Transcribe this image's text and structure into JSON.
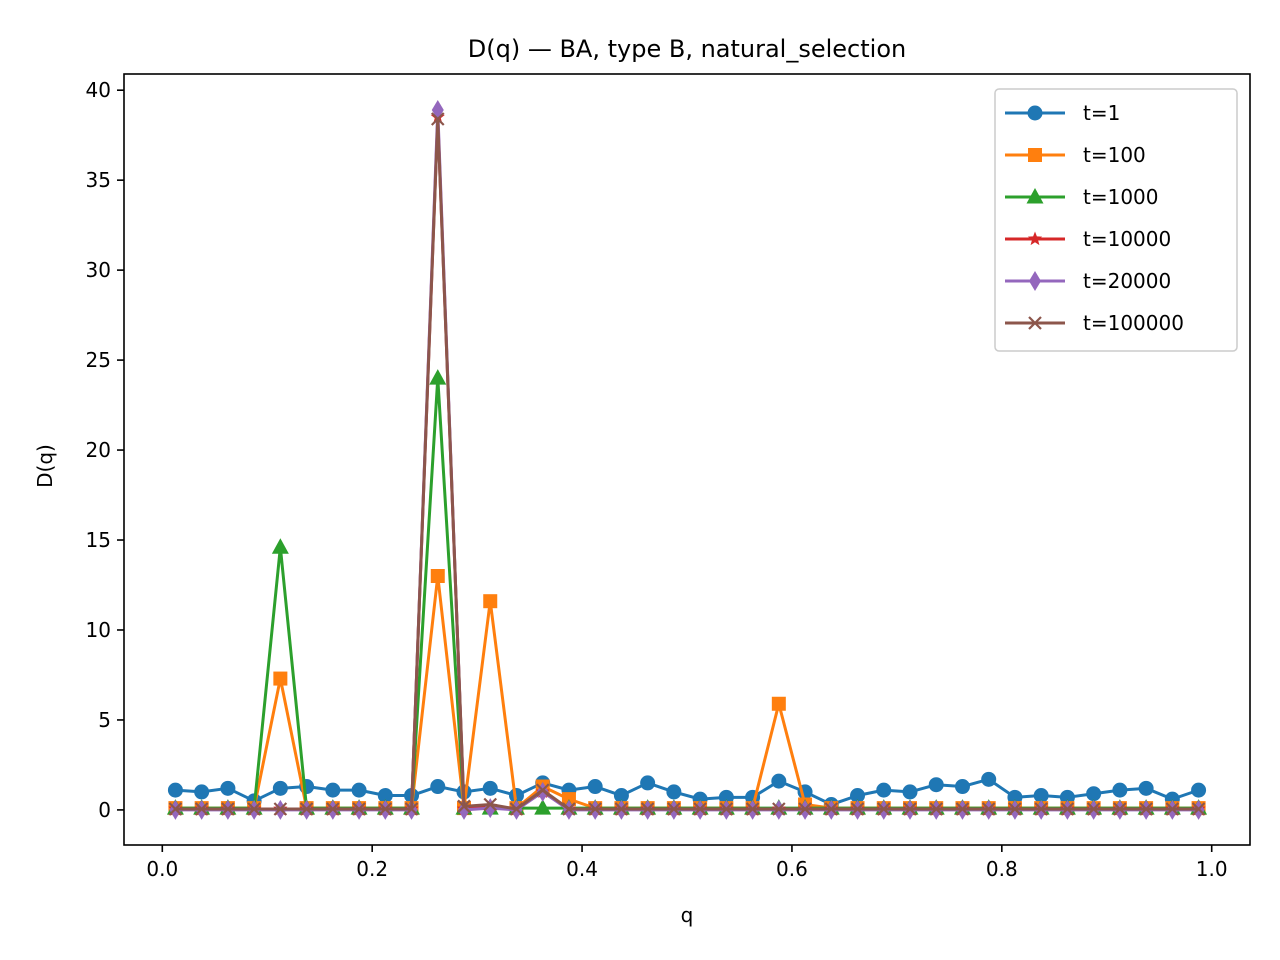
{
  "chart_data": {
    "type": "line",
    "title": "D(q) — BA, type B, natural_selection",
    "xlabel": "q",
    "ylabel": "D(q)",
    "xlim": [
      -0.0365,
      1.0365
    ],
    "ylim": [
      -1.95,
      40.9
    ],
    "xticks": [
      0.0,
      0.2,
      0.4,
      0.6,
      0.8,
      1.0
    ],
    "xtick_labels": [
      "0.0",
      "0.2",
      "0.4",
      "0.6",
      "0.8",
      "1.0"
    ],
    "yticks": [
      0,
      5,
      10,
      15,
      20,
      25,
      30,
      35,
      40
    ],
    "ytick_labels": [
      "0",
      "5",
      "10",
      "15",
      "20",
      "25",
      "30",
      "35",
      "40"
    ],
    "grid": false,
    "legend_position": "top-right",
    "x": [
      0.0125,
      0.0375,
      0.0625,
      0.0875,
      0.1125,
      0.1375,
      0.1625,
      0.1875,
      0.2125,
      0.2375,
      0.2625,
      0.2875,
      0.3125,
      0.3375,
      0.3625,
      0.3875,
      0.4125,
      0.4375,
      0.4625,
      0.4875,
      0.5125,
      0.5375,
      0.5625,
      0.5875,
      0.6125,
      0.6375,
      0.6625,
      0.6875,
      0.7125,
      0.7375,
      0.7625,
      0.7875,
      0.8125,
      0.8375,
      0.8625,
      0.8875,
      0.9125,
      0.9375,
      0.9625,
      0.9875
    ],
    "series": [
      {
        "name": "t=1",
        "color": "#1f77b4",
        "marker": "circle",
        "values": [
          1.1,
          1.0,
          1.2,
          0.5,
          1.2,
          1.3,
          1.1,
          1.1,
          0.8,
          0.8,
          1.3,
          1.0,
          1.2,
          0.8,
          1.5,
          1.1,
          1.3,
          0.8,
          1.5,
          1.0,
          0.6,
          0.7,
          0.7,
          1.6,
          1.0,
          0.3,
          0.8,
          1.1,
          1.0,
          1.4,
          1.3,
          1.7,
          0.7,
          0.8,
          0.7,
          0.9,
          1.1,
          1.2,
          0.6,
          1.1
        ]
      },
      {
        "name": "t=100",
        "color": "#ff7f0e",
        "marker": "square",
        "values": [
          0.1,
          0.1,
          0.1,
          0.1,
          7.3,
          0.1,
          0.1,
          0.1,
          0.1,
          0.1,
          13.0,
          0.1,
          11.6,
          0.1,
          1.3,
          0.6,
          0.1,
          0.1,
          0.1,
          0.1,
          0.1,
          0.1,
          0.1,
          5.9,
          0.3,
          0.1,
          0.1,
          0.1,
          0.1,
          0.1,
          0.1,
          0.1,
          0.1,
          0.1,
          0.1,
          0.1,
          0.1,
          0.1,
          0.1,
          0.1
        ]
      },
      {
        "name": "t=1000",
        "color": "#2ca02c",
        "marker": "triangle",
        "values": [
          0.1,
          0.1,
          0.1,
          0.1,
          14.6,
          0.1,
          0.1,
          0.1,
          0.1,
          0.1,
          24.0,
          0.1,
          0.1,
          0.1,
          0.1,
          0.1,
          0.1,
          0.1,
          0.1,
          0.1,
          0.1,
          0.1,
          0.1,
          0.1,
          0.1,
          0.1,
          0.1,
          0.1,
          0.1,
          0.1,
          0.1,
          0.1,
          0.1,
          0.1,
          0.1,
          0.1,
          0.1,
          0.1,
          0.1,
          0.1
        ]
      },
      {
        "name": "t=10000",
        "color": "#d62728",
        "marker": "star",
        "values": [
          0.05,
          0.05,
          0.05,
          0.05,
          0.05,
          0.05,
          0.05,
          0.05,
          0.05,
          0.05,
          38.5,
          0.05,
          0.2,
          0.05,
          1.0,
          0.05,
          0.05,
          0.05,
          0.05,
          0.05,
          0.05,
          0.05,
          0.05,
          0.05,
          0.05,
          0.05,
          0.05,
          0.05,
          0.05,
          0.05,
          0.05,
          0.05,
          0.05,
          0.05,
          0.05,
          0.05,
          0.05,
          0.05,
          0.05,
          0.05
        ]
      },
      {
        "name": "t=20000",
        "color": "#9467bd",
        "marker": "diamond",
        "values": [
          0.0,
          0.0,
          0.0,
          0.0,
          0.0,
          0.0,
          0.0,
          0.0,
          0.0,
          0.0,
          38.9,
          0.0,
          0.1,
          0.0,
          1.0,
          0.0,
          0.0,
          0.0,
          0.0,
          0.0,
          0.0,
          0.0,
          0.0,
          0.0,
          0.0,
          0.0,
          0.0,
          0.0,
          0.0,
          0.0,
          0.0,
          0.0,
          0.0,
          0.0,
          0.0,
          0.0,
          0.0,
          0.0,
          0.0,
          0.0
        ]
      },
      {
        "name": "t=100000",
        "color": "#8c564b",
        "marker": "x",
        "values": [
          0.05,
          0.05,
          0.05,
          0.05,
          0.05,
          0.05,
          0.05,
          0.05,
          0.05,
          0.05,
          38.4,
          0.2,
          0.3,
          0.05,
          1.1,
          0.05,
          0.05,
          0.05,
          0.05,
          0.05,
          0.05,
          0.05,
          0.05,
          0.05,
          0.05,
          0.05,
          0.05,
          0.05,
          0.05,
          0.05,
          0.05,
          0.05,
          0.05,
          0.05,
          0.05,
          0.05,
          0.05,
          0.05,
          0.05,
          0.05
        ]
      }
    ]
  }
}
